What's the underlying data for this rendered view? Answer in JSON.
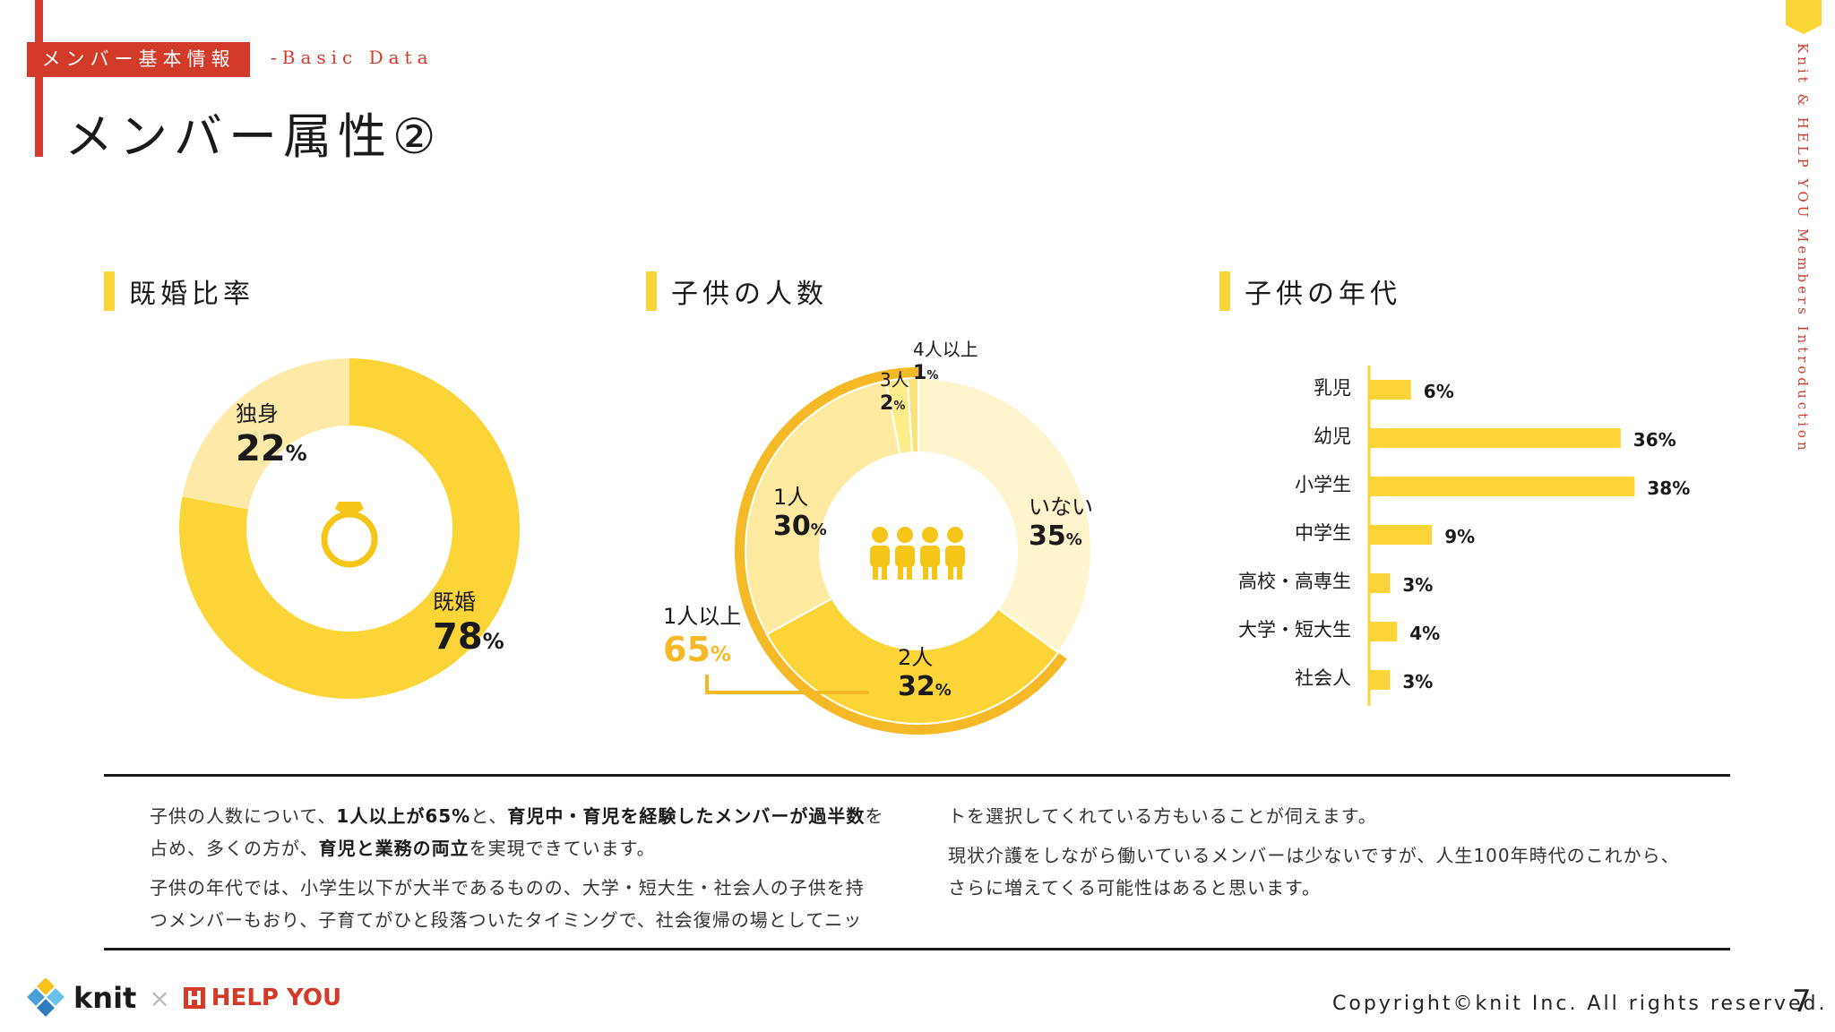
{
  "header": {
    "tag": "メンバー基本情報",
    "subtag": "-Basic Data",
    "title": "メンバー属性②",
    "side_text": "Knit & HELP YOU Members Introduction"
  },
  "sections": {
    "marriage": {
      "title": "既婚比率"
    },
    "children_count": {
      "title": "子供の人数"
    },
    "children_age": {
      "title": "子供の年代"
    }
  },
  "chart_data": [
    {
      "type": "pie",
      "variant": "donut",
      "title": "既婚比率",
      "categories": [
        "既婚",
        "独身"
      ],
      "values": [
        78,
        22
      ],
      "unit": "%",
      "colors": [
        "#fbd538",
        "#fde9a8"
      ],
      "center_icon": "ring-icon"
    },
    {
      "type": "pie",
      "variant": "donut",
      "title": "子供の人数",
      "categories": [
        "いない",
        "2人",
        "1人",
        "3人",
        "4人以上"
      ],
      "values": [
        35,
        32,
        30,
        2,
        1
      ],
      "unit": "%",
      "colors": [
        "#fef4cd",
        "#fbd538",
        "#fde9a0",
        "#fdec8a",
        "#f9e27a"
      ],
      "annotation": {
        "label": "1人以上",
        "value": 65,
        "unit": "%",
        "color": "#f5b826"
      },
      "center_icon": "family-icon"
    },
    {
      "type": "bar",
      "orientation": "horizontal",
      "title": "子供の年代",
      "categories": [
        "乳児",
        "幼児",
        "小学生",
        "中学生",
        "高校・高専生",
        "大学・短大生",
        "社会人"
      ],
      "values": [
        6,
        36,
        38,
        9,
        3,
        4,
        3
      ],
      "unit": "%",
      "color": "#fbd538"
    }
  ],
  "body": {
    "col1_p1": [
      "子供の人数について、",
      "1人以上が65%",
      "と、",
      "育児中・育児を経験したメンバーが過半数",
      "を",
      "占め、多くの方が、",
      "育児と業務の両立",
      "を実現できています。"
    ],
    "col1_p2_line1": "子供の年代では、小学生以下が大半であるものの、大学・短大生・社会人の子供を持",
    "col1_p2_line2": "つメンバーもおり、子育てがひと段落ついたタイミングで、社会復帰の場としてニッ",
    "col2_p1": "トを選択してくれている方もいることが伺えます。",
    "col2_p2_line1": "現状介護をしながら働いているメンバーは少ないですが、人生100年時代のこれから、",
    "col2_p2_line2": "さらに増えてくる可能性はあると思います。"
  },
  "footer": {
    "logo_knit": "knit",
    "logo_times": "×",
    "logo_helpyou": "HELP YOU",
    "copyright": "Copyright©knit Inc. All rights reserved.",
    "page": "7"
  }
}
